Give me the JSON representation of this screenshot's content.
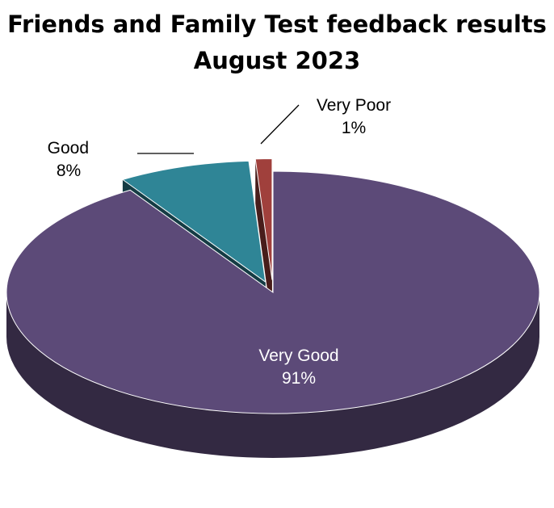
{
  "chart_data": {
    "type": "pie",
    "title": "Friends and Family Test feedback results",
    "subtitle": "August 2023",
    "slices": [
      {
        "label": "Very Good",
        "value": 91,
        "display": "91%",
        "color": "#5c4a78"
      },
      {
        "label": "Good",
        "value": 8,
        "display": "8%",
        "color": "#2f8596"
      },
      {
        "label": "Very Poor",
        "value": 1,
        "display": "1%",
        "color": "#a0403c"
      }
    ],
    "style": "3d-exploded",
    "legend": "none"
  }
}
